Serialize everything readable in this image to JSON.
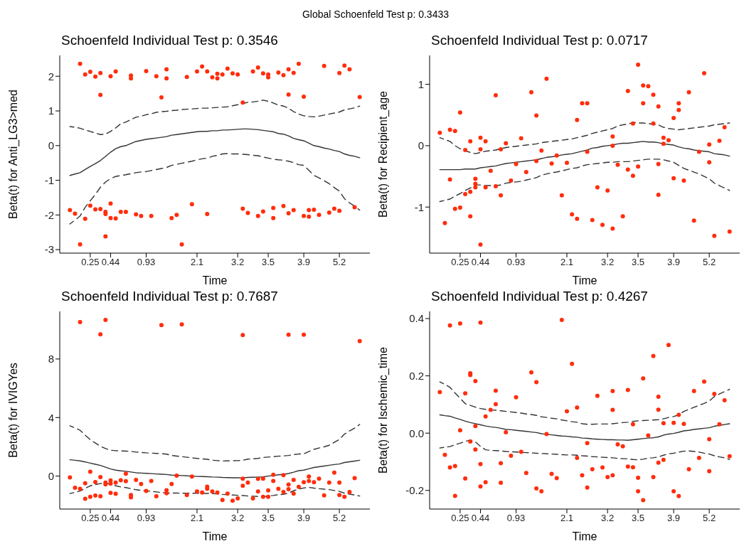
{
  "chart_data": [
    {
      "type": "other",
      "title": "Global Schoenfeld Test p: 0.3433"
    },
    {
      "type": "scatter",
      "title": "Schoenfeld Individual Test p: 0.3546",
      "xlabel": "Time",
      "ylabel": "Beta(t) for Anti_LG3>med",
      "categories": [
        null,
        null,
        null,
        null,
        "0.25",
        null,
        null,
        null,
        "0.44",
        null,
        null,
        null,
        null,
        null,
        null,
        "0.93",
        null,
        null,
        null,
        null,
        null,
        null,
        null,
        null,
        null,
        "2.1",
        null,
        null,
        null,
        null,
        null,
        null,
        null,
        "3.2",
        null,
        null,
        null,
        null,
        null,
        "3.5",
        null,
        null,
        null,
        null,
        null,
        null,
        "3.9",
        null,
        null,
        null,
        null,
        null,
        null,
        "5.2",
        null,
        null,
        null,
        null
      ],
      "ylim": [
        -3.1,
        2.6
      ],
      "yticks": [
        -3,
        -2,
        -1,
        0,
        1,
        2
      ],
      "series": [
        {
          "type": "scatter",
          "marker": "circle",
          "color": "#ff2d0d",
          "values": [
            -1.86,
            -1.96,
            2.36,
            2.05,
            2.13,
            1.99,
            2.09,
            -1.91,
            2.0,
            2.14,
            -1.91,
            -1.91,
            2.02,
            -1.98,
            -2.03,
            2.15,
            -2.03,
            2.0,
            1.39,
            2.2,
            -2.09,
            -2.0,
            -2.85,
            1.98,
            -1.69,
            2.14,
            2.28,
            2.14,
            1.97,
            2.07,
            2.05,
            2.22,
            2.08,
            2.05,
            1.24,
            -1.94,
            2.14,
            2.25,
            2.08,
            2.05,
            -1.8,
            2.11,
            2.03,
            2.2,
            2.1,
            2.36,
            1.41,
            -1.86,
            -1.85,
            -2.0,
            2.3,
            -1.93,
            -1.82,
            2.09,
            2.31,
            2.2,
            -1.78,
            1.4
          ]
        },
        {
          "type": "scatter",
          "marker": "circle",
          "color": "#ff2d0d",
          "values": [
            null,
            null,
            -2.85,
            -2.11,
            -1.73,
            -1.84,
            1.46,
            -1.97,
            -1.67,
            -2.1,
            null,
            null,
            1.94,
            null,
            null,
            null,
            null,
            null,
            null,
            1.94,
            null,
            null,
            null,
            null,
            null,
            null,
            null,
            -1.97,
            null,
            1.94,
            null,
            null,
            null,
            null,
            -1.82,
            null,
            null,
            -2.03,
            -1.9,
            1.97,
            -2.09,
            null,
            -1.74,
            1.47,
            -1.86,
            null,
            -2.03,
            -2.05,
            null,
            null,
            null,
            null,
            null,
            -1.88,
            null,
            null,
            null,
            null
          ]
        },
        {
          "type": "scatter",
          "marker": "circle",
          "color": "#ff2d0d",
          "values": [
            null,
            null,
            null,
            null,
            null,
            null,
            -1.83,
            -2.62,
            -2.09,
            null,
            null,
            null,
            null,
            null,
            null,
            null,
            null,
            null,
            null,
            null,
            null,
            null,
            null,
            null,
            null,
            null,
            null,
            null,
            null,
            null,
            null,
            null,
            null,
            null,
            null,
            null,
            null,
            null,
            null,
            null,
            null,
            null,
            null,
            -1.95,
            null,
            null,
            null,
            null,
            null,
            null,
            null,
            null,
            null,
            null,
            null,
            null,
            null,
            null
          ]
        },
        {
          "type": "line",
          "marker": "none",
          "line_style": "solid",
          "color": "#333333",
          "values": [
            -0.86,
            -0.82,
            -0.78,
            -0.69,
            -0.6,
            -0.52,
            -0.43,
            -0.31,
            -0.19,
            -0.09,
            -0.03,
            0.0,
            0.06,
            0.12,
            0.15,
            0.18,
            0.2,
            0.22,
            0.24,
            0.26,
            0.3,
            0.32,
            0.34,
            0.36,
            0.38,
            0.4,
            0.41,
            0.41,
            0.43,
            0.43,
            0.45,
            0.45,
            0.46,
            0.47,
            0.48,
            0.48,
            0.47,
            0.46,
            0.44,
            0.42,
            0.4,
            0.35,
            0.33,
            0.28,
            0.21,
            0.17,
            0.14,
            0.07,
            0.0,
            -0.03,
            -0.07,
            -0.1,
            -0.14,
            -0.17,
            -0.24,
            -0.28,
            -0.31,
            -0.35
          ]
        },
        {
          "type": "line",
          "marker": "none",
          "line_style": "dashed",
          "color": "#333333",
          "values": [
            0.55,
            0.53,
            0.5,
            0.45,
            0.41,
            0.36,
            0.32,
            0.33,
            0.41,
            0.51,
            0.63,
            0.68,
            0.75,
            0.82,
            0.85,
            0.89,
            0.92,
            0.96,
            0.98,
            0.99,
            1.01,
            1.02,
            1.04,
            1.05,
            1.06,
            1.07,
            1.08,
            1.08,
            1.09,
            1.1,
            1.11,
            1.12,
            1.15,
            1.18,
            1.21,
            1.25,
            1.26,
            1.28,
            1.31,
            1.28,
            1.23,
            1.17,
            1.14,
            1.08,
            0.98,
            0.91,
            0.86,
            0.84,
            0.83,
            0.85,
            0.88,
            0.91,
            0.94,
            0.97,
            1.03,
            1.06,
            1.09,
            1.14
          ]
        },
        {
          "type": "line",
          "marker": "none",
          "line_style": "dashed",
          "color": "#333333",
          "values": [
            -2.26,
            -2.15,
            -2.03,
            -1.78,
            -1.59,
            -1.41,
            -1.2,
            -1.05,
            -0.95,
            -0.89,
            -0.86,
            -0.84,
            -0.81,
            -0.78,
            -0.76,
            -0.75,
            -0.72,
            -0.69,
            -0.66,
            -0.63,
            -0.57,
            -0.54,
            -0.51,
            -0.48,
            -0.45,
            -0.41,
            -0.38,
            -0.36,
            -0.31,
            -0.28,
            -0.24,
            -0.23,
            -0.24,
            -0.24,
            -0.25,
            -0.26,
            -0.28,
            -0.29,
            -0.33,
            -0.36,
            -0.39,
            -0.41,
            -0.42,
            -0.45,
            -0.49,
            -0.55,
            -0.57,
            -0.71,
            -0.86,
            -0.93,
            -1.01,
            -1.1,
            -1.21,
            -1.31,
            -1.53,
            -1.65,
            -1.75,
            -1.86
          ]
        }
      ]
    },
    {
      "type": "scatter",
      "title": "Schoenfeld Individual Test p: 0.0717",
      "xlabel": "Time",
      "ylabel": "Beta(t) for Recipient_age",
      "categories": [
        null,
        null,
        null,
        null,
        "0.25",
        null,
        null,
        null,
        "0.44",
        null,
        null,
        null,
        null,
        null,
        null,
        "0.93",
        null,
        null,
        null,
        null,
        null,
        null,
        null,
        null,
        null,
        "2.1",
        null,
        null,
        null,
        null,
        null,
        null,
        null,
        "3.2",
        null,
        null,
        null,
        null,
        null,
        "3.5",
        null,
        null,
        null,
        null,
        null,
        null,
        "3.9",
        null,
        null,
        null,
        null,
        null,
        null,
        "5.2",
        null,
        null,
        null,
        null
      ],
      "ylim": [
        -1.75,
        1.47
      ],
      "yticks": [
        -1,
        0,
        1
      ],
      "series": [
        {
          "type": "scatter",
          "marker": "circle",
          "color": "#ff2d0d",
          "values": [
            0.21,
            -1.26,
            0.26,
            0.24,
            0.54,
            -0.07,
            0.07,
            -0.54,
            0.13,
            0.07,
            -0.41,
            0.82,
            -0.06,
            0.04,
            -0.57,
            -0.3,
            0.12,
            -0.43,
            0.87,
            0.49,
            -0.08,
            1.09,
            -0.29,
            -0.16,
            -0.81,
            -0.28,
            -1.12,
            0.42,
            0.69,
            0.69,
            -1.21,
            -0.68,
            -1.29,
            -0.73,
            0.15,
            -0.31,
            -1.15,
            0.89,
            0.36,
            1.32,
            0.98,
            0.97,
            0.83,
            0.64,
            0.13,
            0.09,
            0.45,
            0.69,
            -0.57,
            0.87,
            -1.22,
            -0.1,
            1.18,
            0.02,
            -1.47,
            0.08,
            0.3,
            -1.4
          ]
        },
        {
          "type": "scatter",
          "marker": "circle",
          "color": "#ff2d0d",
          "values": [
            null,
            null,
            -0.55,
            -1.03,
            -1.01,
            -0.79,
            -0.75,
            -0.62,
            -0.06,
            -0.68,
            null,
            -0.66,
            -0.81,
            null,
            null,
            null,
            null,
            null,
            null,
            -0.25,
            null,
            null,
            null,
            null,
            null,
            null,
            null,
            -1.19,
            null,
            -0.1,
            null,
            null,
            null,
            null,
            0.0,
            null,
            null,
            -0.39,
            -0.49,
            -0.34,
            0.69,
            null,
            0.36,
            -0.3,
            0.03,
            null,
            -0.53,
            0.58,
            null,
            null,
            null,
            null,
            null,
            -0.27,
            null,
            null,
            null,
            null
          ]
        },
        {
          "type": "scatter",
          "marker": "circle",
          "color": "#ff2d0d",
          "values": [
            null,
            null,
            null,
            null,
            null,
            null,
            -1.15,
            -0.68,
            -1.61,
            null,
            null,
            null,
            null,
            null,
            null,
            null,
            null,
            null,
            null,
            null,
            null,
            null,
            null,
            null,
            null,
            null,
            null,
            null,
            null,
            null,
            null,
            null,
            null,
            null,
            -1.35,
            null,
            null,
            null,
            null,
            null,
            null,
            null,
            null,
            -0.8,
            null,
            null,
            null,
            null,
            null,
            null,
            null,
            null,
            null,
            null,
            null,
            null,
            null,
            null
          ]
        },
        {
          "type": "line",
          "marker": "none",
          "line_style": "solid",
          "color": "#333333",
          "values": [
            -0.39,
            -0.39,
            -0.39,
            -0.39,
            -0.39,
            -0.38,
            -0.38,
            -0.38,
            -0.36,
            -0.35,
            -0.34,
            -0.33,
            -0.31,
            -0.29,
            -0.28,
            -0.27,
            -0.26,
            -0.25,
            -0.24,
            -0.23,
            -0.21,
            -0.19,
            -0.18,
            -0.17,
            -0.15,
            -0.14,
            -0.13,
            -0.11,
            -0.09,
            -0.07,
            -0.04,
            -0.03,
            -0.01,
            0.0,
            0.01,
            0.03,
            0.04,
            0.04,
            0.05,
            0.06,
            0.07,
            0.06,
            0.06,
            0.05,
            0.03,
            0.02,
            0.01,
            -0.02,
            -0.04,
            -0.05,
            -0.07,
            -0.08,
            -0.09,
            -0.1,
            -0.13,
            -0.14,
            -0.15,
            -0.17
          ]
        },
        {
          "type": "line",
          "marker": "none",
          "line_style": "dashed",
          "color": "#333333",
          "values": [
            0.13,
            0.1,
            0.07,
            0.0,
            -0.05,
            -0.08,
            -0.11,
            -0.13,
            -0.11,
            -0.09,
            -0.08,
            -0.07,
            -0.05,
            -0.03,
            -0.02,
            -0.01,
            0.0,
            0.01,
            0.02,
            0.03,
            0.05,
            0.06,
            0.07,
            0.08,
            0.09,
            0.1,
            0.11,
            0.13,
            0.15,
            0.17,
            0.2,
            0.22,
            0.24,
            0.26,
            0.28,
            0.32,
            0.34,
            0.35,
            0.38,
            0.37,
            0.37,
            0.36,
            0.35,
            0.34,
            0.3,
            0.28,
            0.27,
            0.26,
            0.27,
            0.28,
            0.29,
            0.3,
            0.31,
            0.32,
            0.34,
            0.35,
            0.36,
            0.37
          ]
        },
        {
          "type": "line",
          "marker": "none",
          "line_style": "dashed",
          "color": "#333333",
          "values": [
            -0.91,
            -0.89,
            -0.87,
            -0.82,
            -0.78,
            -0.73,
            -0.69,
            -0.64,
            -0.64,
            -0.65,
            -0.65,
            -0.65,
            -0.64,
            -0.61,
            -0.6,
            -0.59,
            -0.58,
            -0.56,
            -0.54,
            -0.52,
            -0.48,
            -0.46,
            -0.44,
            -0.43,
            -0.41,
            -0.39,
            -0.37,
            -0.36,
            -0.33,
            -0.31,
            -0.3,
            -0.29,
            -0.28,
            -0.27,
            -0.27,
            -0.26,
            -0.26,
            -0.26,
            -0.25,
            -0.24,
            -0.23,
            -0.22,
            -0.22,
            -0.22,
            -0.23,
            -0.25,
            -0.27,
            -0.32,
            -0.37,
            -0.4,
            -0.43,
            -0.46,
            -0.5,
            -0.54,
            -0.61,
            -0.65,
            -0.69,
            -0.73
          ]
        }
      ]
    },
    {
      "type": "scatter",
      "title": "Schoenfeld Individual Test p: 0.7687",
      "xlabel": "Time",
      "ylabel": "Beta(t) for IVIGYes",
      "categories": [
        null,
        null,
        null,
        null,
        "0.25",
        null,
        null,
        null,
        "0.44",
        null,
        null,
        null,
        null,
        null,
        null,
        "0.93",
        null,
        null,
        null,
        null,
        null,
        null,
        null,
        null,
        null,
        "2.1",
        null,
        null,
        null,
        null,
        null,
        null,
        null,
        "3.2",
        null,
        null,
        null,
        null,
        null,
        "3.5",
        null,
        null,
        null,
        null,
        null,
        null,
        "3.9",
        null,
        null,
        null,
        null,
        null,
        null,
        "5.2",
        null,
        null,
        null,
        null
      ],
      "ylim": [
        -2.25,
        11.25
      ],
      "yticks": [
        0,
        4,
        8
      ],
      "series": [
        {
          "type": "scatter",
          "marker": "circle",
          "color": "#ff2d0d",
          "values": [
            -0.09,
            -0.79,
            10.52,
            -0.49,
            0.3,
            -0.4,
            9.68,
            10.67,
            -0.3,
            -0.44,
            -0.28,
            0.16,
            -1.29,
            -0.26,
            -0.54,
            -1.01,
            -0.33,
            -1.38,
            10.32,
            -0.96,
            -0.54,
            0.03,
            10.36,
            -1.29,
            -0.03,
            -1.05,
            -1.12,
            -0.72,
            -1.05,
            -1.12,
            -1.63,
            -1.19,
            -1.68,
            -1.52,
            9.64,
            -0.44,
            -1.52,
            -0.19,
            -0.17,
            -0.98,
            0.09,
            -0.87,
            0.07,
            9.66,
            -0.26,
            -0.73,
            9.66,
            -0.03,
            -0.42,
            -0.17,
            -1.31,
            -0.44,
            0.24,
            -0.44,
            -1.41,
            -1.08,
            -0.14,
            9.22
          ]
        },
        {
          "type": "scatter",
          "marker": "circle",
          "color": "#ff2d0d",
          "values": [
            null,
            null,
            -0.86,
            -1.55,
            -1.41,
            -1.33,
            -0.07,
            -0.44,
            -0.51,
            -1.21,
            null,
            -0.35,
            -1.45,
            null,
            null,
            null,
            null,
            null,
            null,
            -1.17,
            null,
            null,
            null,
            null,
            null,
            null,
            null,
            -0.86,
            null,
            null,
            null,
            null,
            null,
            null,
            -0.17,
            null,
            null,
            -1.05,
            -1.41,
            -1.41,
            -0.33,
            null,
            -1.08,
            -0.58,
            -1.19,
            null,
            -0.42,
            -0.33,
            null,
            null,
            null,
            null,
            null,
            -1.29,
            null,
            null,
            null,
            null
          ]
        },
        {
          "type": "scatter",
          "marker": "circle",
          "color": "#ff2d0d",
          "values": [
            null,
            null,
            null,
            null,
            null,
            null,
            -1.38,
            -0.56,
            -1.14,
            null,
            null,
            null,
            null,
            null,
            null,
            null,
            null,
            null,
            null,
            null,
            null,
            null,
            null,
            null,
            null,
            null,
            null,
            null,
            null,
            null,
            null,
            null,
            null,
            null,
            -0.66,
            null,
            null,
            null,
            null,
            null,
            null,
            null,
            null,
            -0.89,
            null,
            null,
            null,
            null,
            null,
            null,
            null,
            null,
            null,
            null,
            null,
            null,
            null,
            null
          ]
        },
        {
          "type": "line",
          "marker": "none",
          "line_style": "solid",
          "color": "#333333",
          "values": [
            1.12,
            1.08,
            1.04,
            0.97,
            0.89,
            0.81,
            0.73,
            0.61,
            0.49,
            0.41,
            0.36,
            0.33,
            0.28,
            0.23,
            0.21,
            0.19,
            0.17,
            0.15,
            0.13,
            0.11,
            0.07,
            0.06,
            0.04,
            0.02,
            0.0,
            -0.02,
            -0.03,
            -0.04,
            -0.06,
            -0.07,
            -0.09,
            -0.1,
            -0.11,
            -0.11,
            -0.12,
            -0.09,
            -0.08,
            -0.07,
            -0.05,
            0.0,
            0.04,
            0.09,
            0.12,
            0.18,
            0.27,
            0.37,
            0.41,
            0.5,
            0.59,
            0.64,
            0.69,
            0.74,
            0.79,
            0.83,
            0.93,
            0.98,
            1.03,
            1.08
          ]
        },
        {
          "type": "line",
          "marker": "none",
          "line_style": "dashed",
          "color": "#333333",
          "values": [
            3.44,
            3.29,
            3.13,
            2.8,
            2.49,
            2.26,
            2.04,
            1.88,
            1.77,
            1.74,
            1.72,
            1.71,
            1.69,
            1.64,
            1.62,
            1.59,
            1.57,
            1.55,
            1.53,
            1.5,
            1.41,
            1.37,
            1.33,
            1.29,
            1.25,
            1.21,
            1.18,
            1.15,
            1.09,
            1.06,
            1.03,
            1.04,
            1.05,
            1.06,
            1.08,
            1.16,
            1.18,
            1.21,
            1.27,
            1.3,
            1.33,
            1.36,
            1.38,
            1.41,
            1.47,
            1.51,
            1.52,
            1.68,
            1.83,
            1.92,
            2.0,
            2.11,
            2.31,
            2.5,
            2.87,
            3.09,
            3.28,
            3.53
          ]
        },
        {
          "type": "line",
          "marker": "none",
          "line_style": "dashed",
          "color": "#333333",
          "values": [
            -1.19,
            -1.11,
            -1.02,
            -0.84,
            -0.66,
            -0.58,
            -0.51,
            -0.46,
            -0.57,
            -0.66,
            -0.74,
            -0.78,
            -0.86,
            -0.93,
            -0.97,
            -1.01,
            -1.04,
            -1.08,
            -1.12,
            -1.15,
            -1.16,
            -1.16,
            -1.17,
            -1.17,
            -1.17,
            -1.17,
            -1.18,
            -1.18,
            -1.19,
            -1.21,
            -1.25,
            -1.27,
            -1.29,
            -1.31,
            -1.33,
            -1.36,
            -1.37,
            -1.39,
            -1.41,
            -1.36,
            -1.32,
            -1.27,
            -1.24,
            -1.16,
            -1.0,
            -0.88,
            -0.81,
            -0.77,
            -0.82,
            -0.86,
            -0.89,
            -0.92,
            -0.98,
            -1.04,
            -1.16,
            -1.23,
            -1.29,
            -1.36
          ]
        }
      ]
    },
    {
      "type": "scatter",
      "title": "Schoenfeld Individual Test p: 0.4267",
      "xlabel": "Time",
      "ylabel": "Beta(t) for Ischemic_time",
      "categories": [
        null,
        null,
        null,
        null,
        "0.25",
        null,
        null,
        null,
        "0.44",
        null,
        null,
        null,
        null,
        null,
        null,
        "0.93",
        null,
        null,
        null,
        null,
        null,
        null,
        null,
        null,
        null,
        "2.1",
        null,
        null,
        null,
        null,
        null,
        null,
        null,
        "3.2",
        null,
        null,
        null,
        null,
        null,
        "3.5",
        null,
        null,
        null,
        null,
        null,
        null,
        "3.9",
        null,
        null,
        null,
        null,
        null,
        null,
        "5.2",
        null,
        null,
        null,
        null
      ],
      "ylim": [
        -0.265,
        0.425
      ],
      "yticks": [
        -0.2,
        {
          "value": 0,
          "label": "0.0"
        },
        0.2,
        0.4
      ],
      "series": [
        {
          "type": "scatter",
          "marker": "circle",
          "color": "#ff2d0d",
          "values": [
            0.143,
            -0.076,
            0.376,
            -0.115,
            0.383,
            0.139,
            0.209,
            0.182,
            0.386,
            0.058,
            0.081,
            0.148,
            -0.105,
            0.003,
            -0.079,
            0.125,
            -0.065,
            -0.139,
            0.212,
            0.178,
            -0.203,
            -0.003,
            -0.142,
            -0.157,
            0.395,
            0.076,
            0.242,
            0.089,
            -0.147,
            -0.035,
            -0.126,
            0.13,
            -0.12,
            -0.153,
            0.147,
            -0.039,
            -0.046,
            0.151,
            0.031,
            -0.156,
            0.191,
            -0.008,
            0.269,
            0.127,
            0.035,
            0.308,
            0.036,
            0.064,
            0.032,
            -0.126,
            0.147,
            -0.086,
            0.18,
            -0.021,
            0.137,
            0.031,
            0.115,
            -0.081
          ]
        },
        {
          "type": "scatter",
          "marker": "circle",
          "color": "#ff2d0d",
          "values": [
            null,
            null,
            -0.12,
            -0.219,
            0.01,
            -0.158,
            0.203,
            0.025,
            -0.108,
            -0.171,
            null,
            0.101,
            -0.173,
            null,
            null,
            null,
            null,
            null,
            null,
            -0.193,
            null,
            null,
            null,
            null,
            null,
            null,
            null,
            -0.086,
            null,
            -0.19,
            null,
            null,
            null,
            null,
            0.081,
            null,
            null,
            -0.117,
            -0.119,
            -0.203,
            -0.234,
            null,
            -0.153,
            0.082,
            -0.093,
            null,
            -0.203,
            -0.22,
            null,
            null,
            null,
            null,
            null,
            -0.133,
            null,
            null,
            null,
            null
          ]
        },
        {
          "type": "scatter",
          "marker": "circle",
          "color": "#ff2d0d",
          "values": [
            null,
            null,
            null,
            null,
            null,
            null,
            -0.029,
            -0.057,
            -0.186,
            null,
            null,
            null,
            null,
            null,
            null,
            null,
            null,
            null,
            null,
            null,
            null,
            null,
            null,
            null,
            null,
            null,
            null,
            null,
            null,
            null,
            null,
            null,
            null,
            null,
            -0.147,
            null,
            null,
            null,
            null,
            null,
            null,
            null,
            null,
            -0.103,
            null,
            null,
            null,
            null,
            null,
            null,
            null,
            null,
            null,
            null,
            null,
            null,
            null,
            null
          ]
        },
        {
          "type": "line",
          "marker": "none",
          "line_style": "solid",
          "color": "#333333",
          "values": [
            0.064,
            0.061,
            0.059,
            0.053,
            0.048,
            0.042,
            0.037,
            0.033,
            0.029,
            0.025,
            0.022,
            0.02,
            0.017,
            0.013,
            0.012,
            0.01,
            0.008,
            0.006,
            0.004,
            0.002,
            -0.002,
            -0.004,
            -0.006,
            -0.008,
            -0.01,
            -0.011,
            -0.013,
            -0.014,
            -0.017,
            -0.018,
            -0.02,
            -0.021,
            -0.022,
            -0.023,
            -0.023,
            -0.024,
            -0.024,
            -0.025,
            -0.023,
            -0.021,
            -0.019,
            -0.017,
            -0.016,
            -0.013,
            -0.007,
            -0.003,
            -0.001,
            0.003,
            0.008,
            0.01,
            0.013,
            0.015,
            0.017,
            0.019,
            0.024,
            0.027,
            0.03,
            0.033
          ]
        },
        {
          "type": "line",
          "marker": "none",
          "line_style": "dashed",
          "color": "#333333",
          "values": [
            0.179,
            0.17,
            0.16,
            0.14,
            0.122,
            0.103,
            0.097,
            0.091,
            0.086,
            0.083,
            0.081,
            0.08,
            0.078,
            0.076,
            0.074,
            0.072,
            0.07,
            0.067,
            0.065,
            0.062,
            0.057,
            0.055,
            0.052,
            0.05,
            0.046,
            0.043,
            0.04,
            0.038,
            0.033,
            0.031,
            0.031,
            0.032,
            0.032,
            0.032,
            0.033,
            0.035,
            0.037,
            0.038,
            0.041,
            0.043,
            0.044,
            0.045,
            0.046,
            0.047,
            0.05,
            0.055,
            0.058,
            0.064,
            0.076,
            0.083,
            0.09,
            0.097,
            0.104,
            0.112,
            0.128,
            0.137,
            0.145,
            0.153
          ]
        },
        {
          "type": "line",
          "marker": "none",
          "line_style": "dashed",
          "color": "#333333",
          "values": [
            -0.052,
            -0.049,
            -0.047,
            -0.04,
            -0.035,
            -0.029,
            -0.024,
            -0.031,
            -0.046,
            -0.058,
            -0.06,
            -0.061,
            -0.062,
            -0.064,
            -0.065,
            -0.066,
            -0.067,
            -0.068,
            -0.069,
            -0.07,
            -0.071,
            -0.072,
            -0.073,
            -0.074,
            -0.075,
            -0.076,
            -0.076,
            -0.077,
            -0.079,
            -0.08,
            -0.082,
            -0.083,
            -0.084,
            -0.085,
            -0.086,
            -0.088,
            -0.089,
            -0.09,
            -0.092,
            -0.093,
            -0.091,
            -0.087,
            -0.086,
            -0.083,
            -0.077,
            -0.072,
            -0.07,
            -0.066,
            -0.063,
            -0.062,
            -0.064,
            -0.066,
            -0.07,
            -0.073,
            -0.079,
            -0.083,
            -0.086,
            -0.092
          ]
        }
      ]
    }
  ]
}
